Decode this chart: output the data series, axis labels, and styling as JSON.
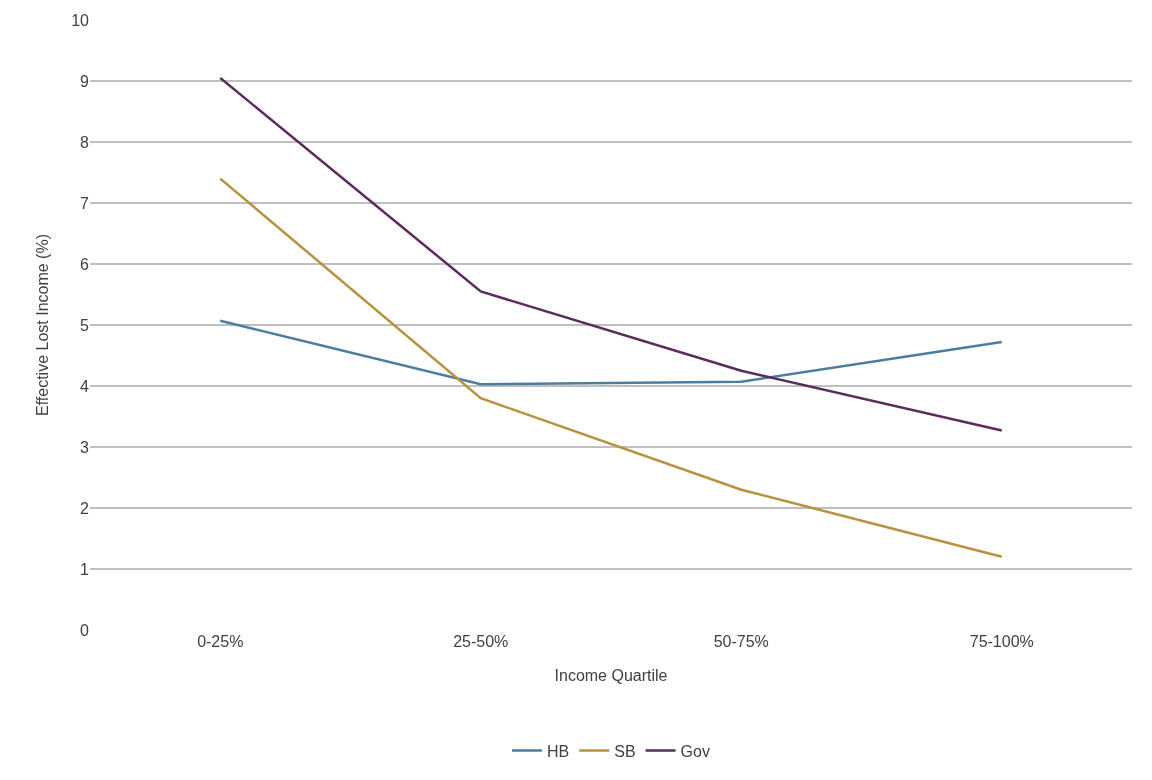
{
  "chart_data": {
    "type": "line",
    "xlabel": "Income Quartile",
    "ylabel": "Effective Lost Income (%)",
    "categories": [
      "0-25%",
      "25-50%",
      "50-75%",
      "75-100%"
    ],
    "series": [
      {
        "name": "HB",
        "color": "#4a7ea0",
        "values": [
          5.07,
          4.03,
          4.07,
          4.72
        ]
      },
      {
        "name": "SB",
        "color": "#b8913c",
        "values": [
          7.4,
          3.8,
          2.3,
          1.2
        ]
      },
      {
        "name": "Gov",
        "color": "#5b2b5e",
        "values": [
          9.05,
          5.55,
          4.25,
          3.27
        ]
      }
    ],
    "ylim": [
      0,
      10
    ],
    "yticks": [
      0,
      1,
      2,
      3,
      4,
      5,
      6,
      7,
      8,
      9,
      10
    ],
    "grid": "y",
    "legend": "bottom",
    "marker": "none",
    "line_style": "solid"
  }
}
